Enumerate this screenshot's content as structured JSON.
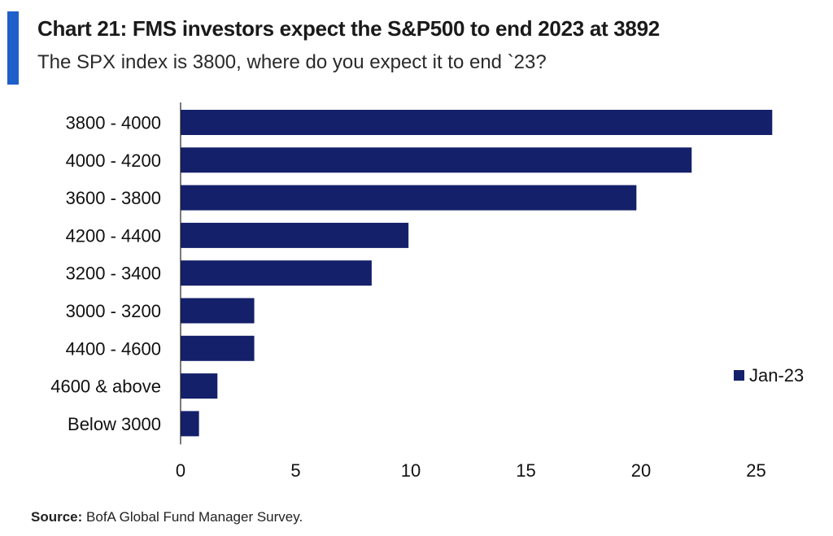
{
  "header": {
    "title": "Chart 21: FMS investors expect the S&P500 to end 2023 at 3892",
    "subtitle": "The SPX index is 3800, where do you expect it to end `23?"
  },
  "source": {
    "label": "Source:",
    "text": "BofA Global Fund Manager Survey."
  },
  "colors": {
    "accent": "#1f5fc9",
    "bar": "#15206a"
  },
  "chart_data": {
    "type": "bar",
    "orientation": "horizontal",
    "categories": [
      "3800 - 4000",
      "4000 - 4200",
      "3600 - 3800",
      "4200 - 4400",
      "3200 - 3400",
      "3000 - 3200",
      "4400 - 4600",
      "4600 & above",
      "Below 3000"
    ],
    "series": [
      {
        "name": "Jan-23",
        "values": [
          25.7,
          22.2,
          19.8,
          9.9,
          8.3,
          3.2,
          3.2,
          1.6,
          0.8
        ]
      }
    ],
    "xticks": [
      0,
      5,
      10,
      15,
      20,
      25
    ],
    "xlim": [
      0,
      25.7
    ],
    "grid": false,
    "legend_position": "right"
  }
}
